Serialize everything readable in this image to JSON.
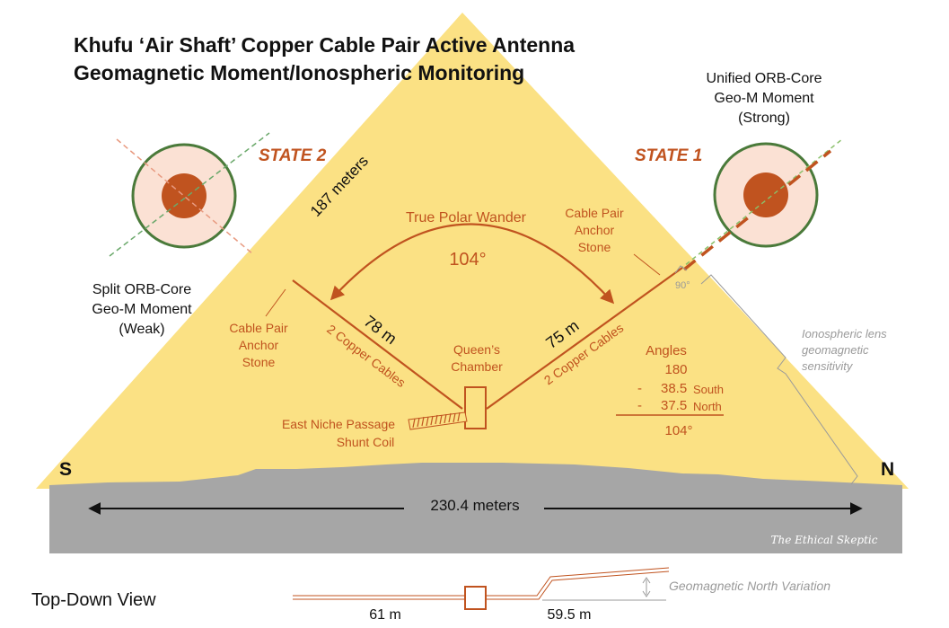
{
  "title": {
    "line1": "Khufu ‘Air Shaft’ Copper Cable Pair Active Antenna",
    "line2": "Geomagnetic Moment/Ionospheric Monitoring"
  },
  "states": {
    "state2": "STATE 2",
    "state1": "STATE 1"
  },
  "orb_strong": {
    "line1": "Unified ORB-Core",
    "line2": "Geo-M Moment",
    "line3": "(Strong)"
  },
  "orb_weak": {
    "line1": "Split ORB-Core",
    "line2": "Geo-M Moment",
    "line3": "(Weak)"
  },
  "edge_length": "187 meters",
  "polar_wander": {
    "label": "True Polar Wander",
    "angle": "104°"
  },
  "anchor_right": {
    "line1": "Cable Pair",
    "line2": "Anchor",
    "line3": "Stone"
  },
  "anchor_left": {
    "line1": "Cable Pair",
    "line2": "Anchor",
    "line3": "Stone"
  },
  "right_angle": "90°",
  "cable_left": {
    "length": "78 m",
    "label": "2 Copper Cables"
  },
  "cable_right": {
    "length": "75 m",
    "label": "2 Copper Cables"
  },
  "chamber": {
    "line1": "Queen’s",
    "line2": "Chamber"
  },
  "shunt": {
    "line1": "East Niche Passage",
    "line2": "Shunt Coil"
  },
  "ionospheric": {
    "line1": "Ionospheric lens",
    "line2": "geomagnetic",
    "line3": "sensitivity"
  },
  "angles": {
    "header": "Angles",
    "v1": "180",
    "op2": "-",
    "v2": "38.5",
    "l2": "South",
    "op3": "-",
    "v3": "37.5",
    "l3": "North",
    "result": "104°"
  },
  "directions": {
    "south": "S",
    "north": "N"
  },
  "base_width": "230.4 meters",
  "watermark": "The Ethical Skeptic",
  "top_down": {
    "label": "Top-Down View",
    "left_len": "61 m",
    "right_len": "59.5 m",
    "variation": "Geomagnetic North Variation"
  },
  "colors": {
    "pyramid": "#fbe184",
    "ground": "#a6a6a6",
    "accent": "#c0531f",
    "orb_fill": "#fbe1d4",
    "orb_ring": "#4a7a3a",
    "orb_core": "#c0531f"
  }
}
